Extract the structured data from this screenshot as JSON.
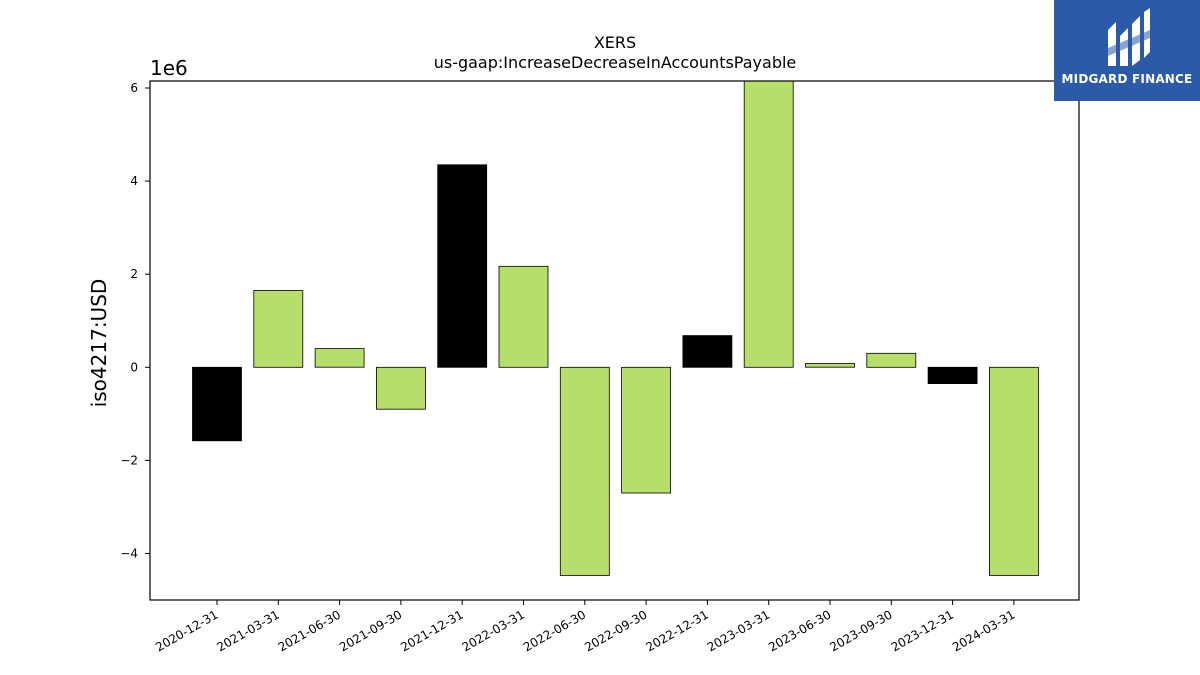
{
  "chart_data": {
    "type": "bar",
    "title": "XERS",
    "subtitle": "us-gaap:IncreaseDecreaseInAccountsPayable",
    "xlabel": "",
    "ylabel": "iso4217:USD",
    "y_offset_label": "1e6",
    "ylim": [
      -5.0,
      6.15
    ],
    "yticks": [
      -4,
      -2,
      0,
      2,
      4,
      6
    ],
    "ytick_labels": [
      "−4",
      "−2",
      "0",
      "2",
      "4",
      "6"
    ],
    "grid": false,
    "categories": [
      "2020-12-31",
      "2021-03-31",
      "2021-06-30",
      "2021-09-30",
      "2021-12-31",
      "2022-03-31",
      "2022-06-30",
      "2022-09-30",
      "2022-12-31",
      "2023-03-31",
      "2023-06-30",
      "2023-09-30",
      "2023-12-31",
      "2024-03-31"
    ],
    "values": [
      -1.58,
      1.65,
      0.4,
      -0.9,
      4.35,
      2.17,
      -4.47,
      -2.7,
      0.68,
      6.15,
      0.08,
      0.3,
      -0.35,
      -4.47
    ],
    "bar_colors": [
      "#000000",
      "#b5df6a",
      "#b5df6a",
      "#b5df6a",
      "#000000",
      "#b5df6a",
      "#b5df6a",
      "#b5df6a",
      "#000000",
      "#b5df6a",
      "#b5df6a",
      "#b5df6a",
      "#000000",
      "#b5df6a"
    ]
  },
  "logo": {
    "text": "MIDGARD FINANCE",
    "background": "#2b5aa8",
    "icon": "midgard-finance-logo-icon"
  }
}
